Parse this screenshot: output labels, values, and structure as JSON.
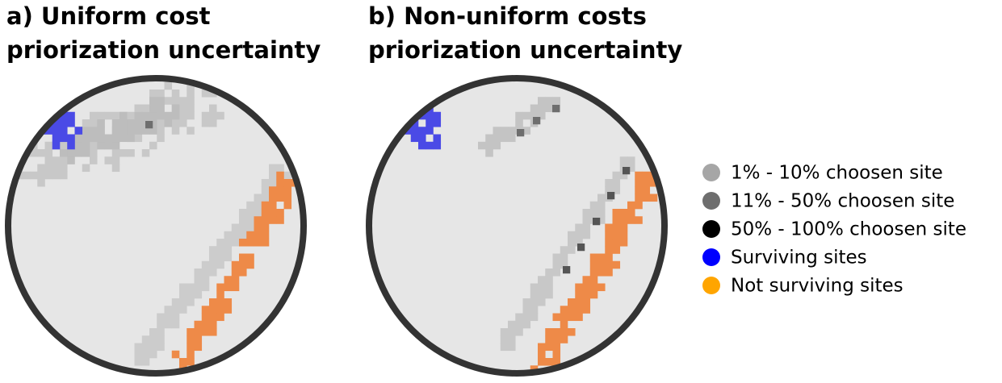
{
  "panels": [
    {
      "title_lines": [
        "a) Uniform cost",
        "priorization uncertainty"
      ]
    },
    {
      "title_lines": [
        "b) Non-uniform costs",
        "priorization uncertainty"
      ]
    }
  ],
  "legend": [
    {
      "label": "1% - 10% choosen site",
      "color": "#a6a6a6"
    },
    {
      "label": "11% - 50% choosen site",
      "color": "#6e6e6e"
    },
    {
      "label": "50% - 100% choosen site",
      "color": "#000000"
    },
    {
      "label": "Surviving sites",
      "color": "#0000ff"
    },
    {
      "label": "Not surviving sites",
      "color": "#ffa500"
    }
  ]
}
